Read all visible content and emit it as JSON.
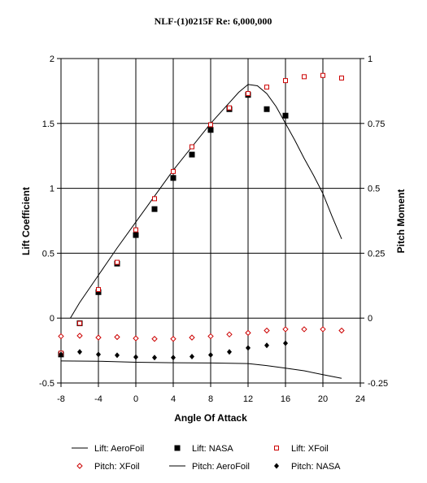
{
  "chart_data": {
    "type": "scatter",
    "title": "NLF-(1)0215F Re: 6,000,000",
    "xlabel": "Angle Of Attack",
    "ylabel": "Lift Coefficient",
    "y2label": "Pitch Moment",
    "xlim": [
      -8,
      24
    ],
    "ylim": [
      -0.5,
      2
    ],
    "y2lim": [
      -0.25,
      1
    ],
    "x_ticks": [
      "-8",
      "-4",
      "0",
      "4",
      "8",
      "12",
      "16",
      "20",
      "24"
    ],
    "y_ticks": [
      "-0.5",
      "0",
      "0.5",
      "1",
      "1.5",
      "2"
    ],
    "y2_ticks": [
      "-0.25",
      "0",
      "0.25",
      "0.5",
      "0.75",
      "1"
    ],
    "grid": true,
    "legend_position": "bottom",
    "series": [
      {
        "name": "Lift: AeroFoil",
        "type": "line",
        "axis": "left",
        "color": "#000000",
        "x": [
          -7,
          -6,
          -4,
          -2,
          0,
          2,
          4,
          6,
          8,
          10,
          11,
          12,
          13,
          14,
          15,
          16,
          17,
          18,
          19,
          20,
          21,
          22
        ],
        "y": [
          0.0,
          0.12,
          0.33,
          0.54,
          0.74,
          0.94,
          1.14,
          1.32,
          1.5,
          1.66,
          1.74,
          1.8,
          1.79,
          1.73,
          1.63,
          1.5,
          1.37,
          1.23,
          1.1,
          0.96,
          0.78,
          0.61
        ]
      },
      {
        "name": "Lift: NASA",
        "type": "scatter",
        "axis": "left",
        "marker": "filled-square",
        "color": "#000000",
        "x": [
          -8,
          -6,
          -4,
          -2,
          0,
          2,
          4,
          6,
          8,
          10,
          12,
          14,
          16
        ],
        "y": [
          -0.28,
          -0.04,
          0.2,
          0.42,
          0.64,
          0.84,
          1.08,
          1.26,
          1.45,
          1.61,
          1.72,
          1.61,
          1.56
        ]
      },
      {
        "name": "Lift: XFoil",
        "type": "scatter",
        "axis": "left",
        "marker": "open-square",
        "color": "#cc0000",
        "x": [
          -8,
          -6,
          -4,
          -2,
          0,
          2,
          4,
          6,
          8,
          10,
          12,
          14,
          16,
          18,
          20,
          22
        ],
        "y": [
          -0.27,
          -0.04,
          0.22,
          0.43,
          0.68,
          0.92,
          1.13,
          1.32,
          1.49,
          1.62,
          1.73,
          1.78,
          1.83,
          1.86,
          1.87,
          1.85
        ]
      },
      {
        "name": "Pitch: XFoil",
        "type": "scatter",
        "axis": "right",
        "marker": "open-diamond",
        "color": "#cc0000",
        "x": [
          -8,
          -6,
          -4,
          -2,
          0,
          2,
          4,
          6,
          8,
          10,
          12,
          14,
          16,
          18,
          20,
          22
        ],
        "y": [
          -0.07,
          -0.068,
          -0.075,
          -0.073,
          -0.078,
          -0.08,
          -0.08,
          -0.075,
          -0.07,
          -0.063,
          -0.057,
          -0.048,
          -0.043,
          -0.043,
          -0.043,
          -0.048
        ]
      },
      {
        "name": "Pitch: AeroFoil",
        "type": "line",
        "axis": "right",
        "color": "#000000",
        "x": [
          -8,
          -4,
          0,
          4,
          8,
          12,
          14,
          16,
          18,
          20,
          22
        ],
        "y": [
          -0.165,
          -0.166,
          -0.17,
          -0.172,
          -0.173,
          -0.175,
          -0.183,
          -0.193,
          -0.203,
          -0.218,
          -0.232
        ]
      },
      {
        "name": "Pitch: NASA",
        "type": "scatter",
        "axis": "right",
        "marker": "filled-diamond",
        "color": "#000000",
        "x": [
          -8,
          -6,
          -4,
          -2,
          0,
          2,
          4,
          6,
          8,
          10,
          12,
          14,
          16
        ],
        "y": [
          -0.14,
          -0.13,
          -0.14,
          -0.143,
          -0.15,
          -0.152,
          -0.152,
          -0.148,
          -0.142,
          -0.13,
          -0.115,
          -0.105,
          -0.097
        ]
      }
    ]
  }
}
